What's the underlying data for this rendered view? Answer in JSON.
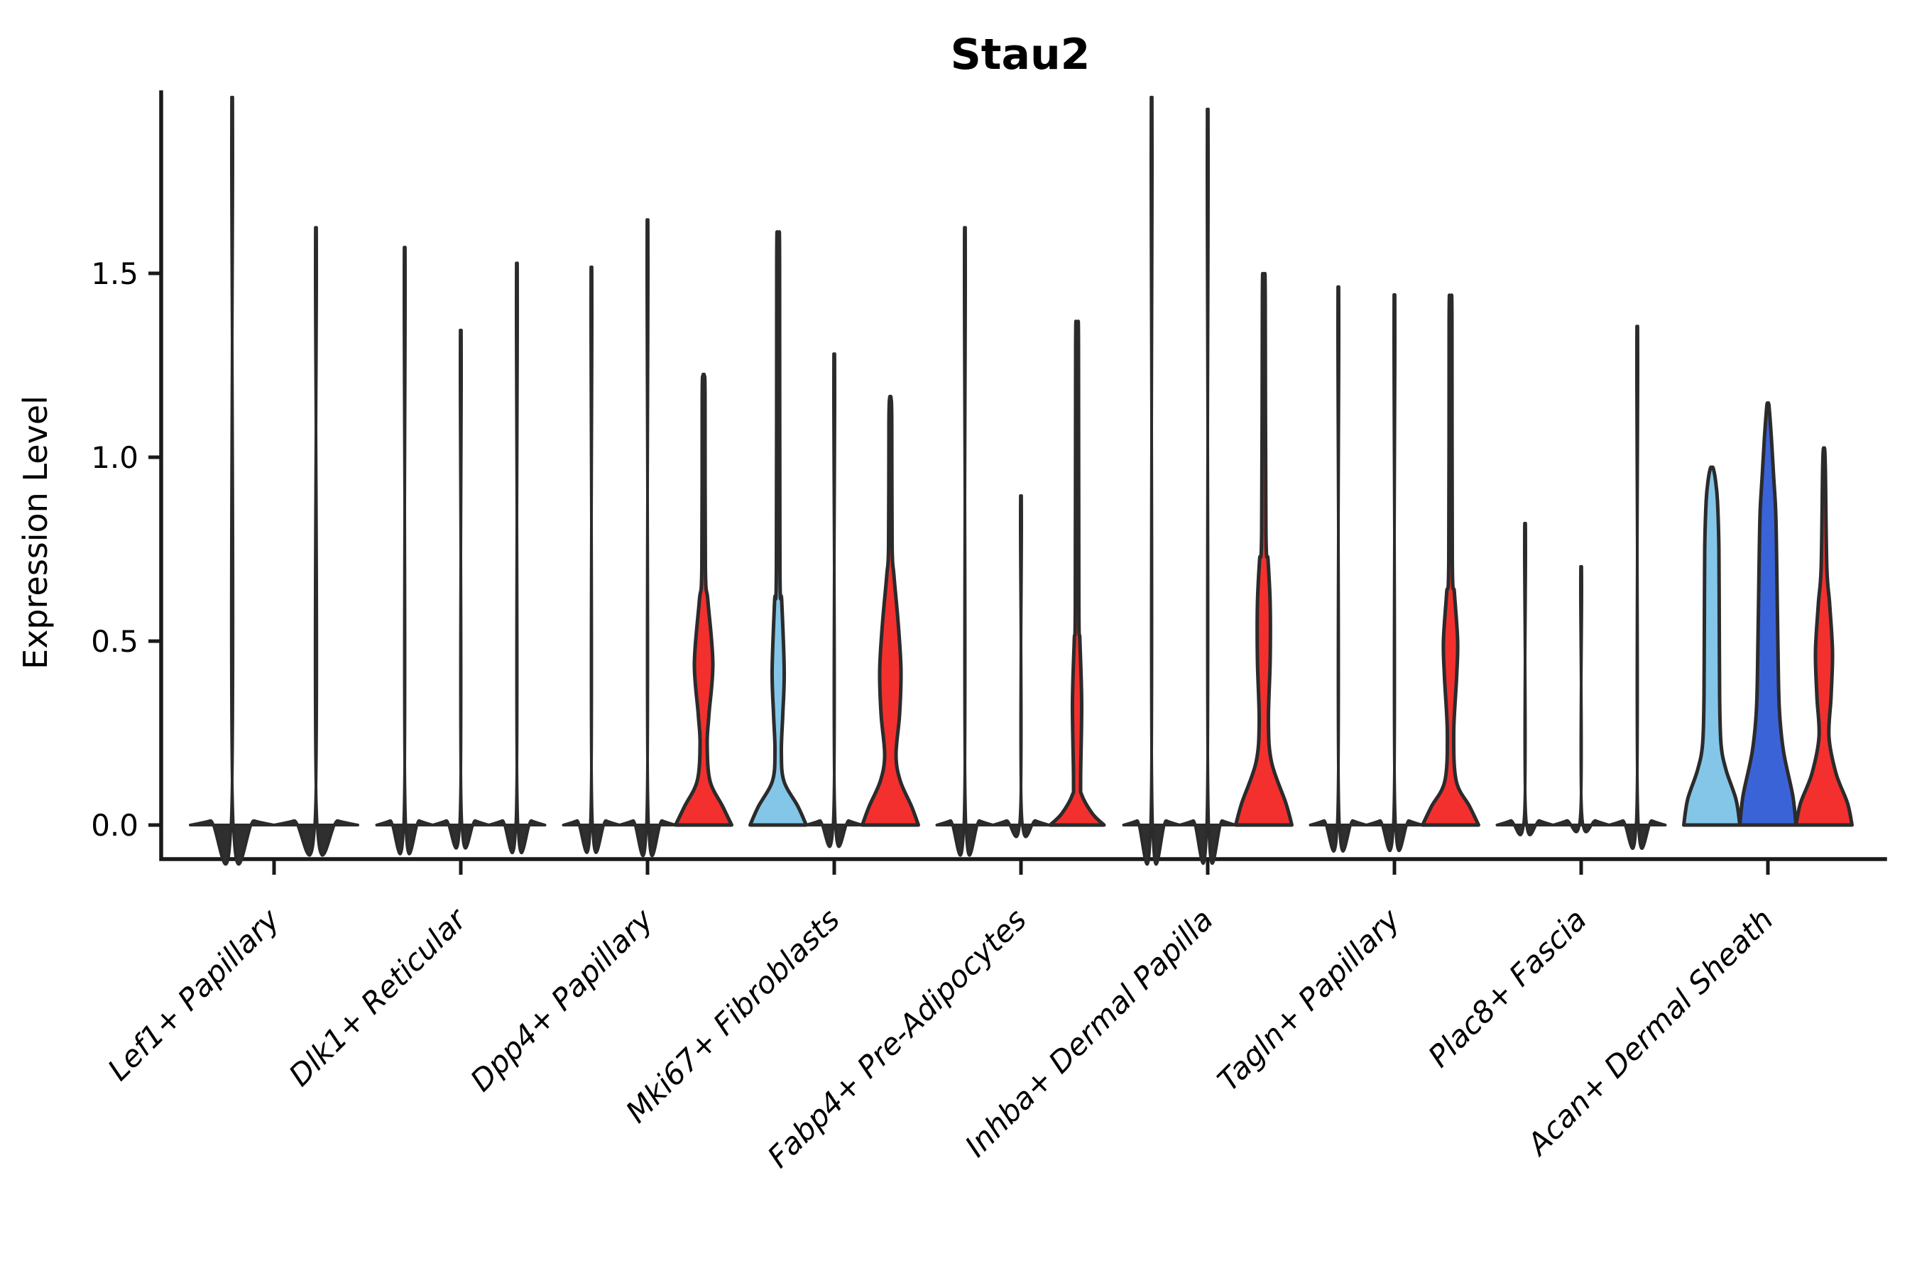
{
  "header": {
    "title": "Stau2"
  },
  "chart_data": {
    "type": "violin",
    "title": "Stau2",
    "ylabel": "Expression Level",
    "xlabel": "",
    "grid": false,
    "legend_position": "none",
    "ylim": [
      -0.09,
      1.99
    ],
    "yticks": [
      "0.0",
      "0.5",
      "1.0",
      "1.5"
    ],
    "ytick_values": [
      0.0,
      0.5,
      1.0,
      1.5
    ],
    "colors": {
      "skyblue": "#84C6E8",
      "royalblue": "#3B63D8",
      "red": "#F3302E",
      "dark": "#2F2F2F",
      "outline": "#2B2B2B",
      "axis": "#1A1A1A"
    },
    "categories": [
      "Lef1+ Papillary",
      "Dlk1+ Reticular",
      "Dpp4+ Papillary",
      "Mki67+ Fibroblasts",
      "Fabp4+ Pre-Adipocytes",
      "Inhba+ Dermal Papilla",
      "Tagln+ Papillary",
      "Plac8+ Fascia",
      "Acan+ Dermal Sheath"
    ],
    "groups": [
      {
        "category": "Lef1+ Papillary",
        "violins": [
          {
            "dx": -59,
            "color": "dark",
            "max": 1.88,
            "base_hw": 59
          },
          {
            "dx": 59,
            "color": "dark",
            "max": 1.55,
            "base_hw": 59
          }
        ]
      },
      {
        "category": "Dlk1+ Reticular",
        "violins": [
          {
            "dx": -79,
            "color": "dark",
            "max": 1.5
          },
          {
            "dx": 0,
            "color": "dark",
            "max": 1.29
          },
          {
            "dx": 79,
            "color": "dark",
            "max": 1.46
          }
        ]
      },
      {
        "category": "Dpp4+ Papillary",
        "violins": [
          {
            "dx": -79,
            "color": "dark",
            "max": 1.45
          },
          {
            "dx": 0,
            "color": "dark",
            "max": 1.57
          },
          {
            "dx": 79,
            "color": "red",
            "max": 1.22,
            "profile": [
              [
                0,
                39.5
              ],
              [
                0.05,
                27
              ],
              [
                0.12,
                9
              ],
              [
                0.22,
                5
              ],
              [
                0.3,
                7.5
              ],
              [
                0.44,
                13
              ],
              [
                0.61,
                6
              ],
              [
                0.7,
                2.5
              ],
              [
                1.16,
                2
              ],
              [
                1.22,
                1
              ]
            ]
          }
        ]
      },
      {
        "category": "Mki67+ Fibroblasts",
        "violins": [
          {
            "dx": -79,
            "color": "skyblue",
            "max": 1.59,
            "profile": [
              [
                0,
                39.5
              ],
              [
                0.05,
                28
              ],
              [
                0.12,
                8
              ],
              [
                0.2,
                4.5
              ],
              [
                0.3,
                6.5
              ],
              [
                0.42,
                8.5
              ],
              [
                0.61,
                5
              ],
              [
                0.7,
                2.5
              ],
              [
                1.53,
                2
              ],
              [
                1.59,
                1
              ]
            ]
          },
          {
            "dx": 0,
            "color": "dark",
            "max": 1.23
          },
          {
            "dx": 79,
            "color": "red",
            "max": 1.16,
            "profile": [
              [
                0,
                39.5
              ],
              [
                0.05,
                30
              ],
              [
                0.12,
                14
              ],
              [
                0.19,
                8
              ],
              [
                0.3,
                13
              ],
              [
                0.42,
                15
              ],
              [
                0.55,
                11
              ],
              [
                0.68,
                5
              ],
              [
                0.76,
                2.5
              ],
              [
                1.1,
                2
              ],
              [
                1.16,
                1
              ]
            ]
          }
        ]
      },
      {
        "category": "Fabp4+ Pre-Adipocytes",
        "violins": [
          {
            "dx": -79,
            "color": "dark",
            "max": 1.55
          },
          {
            "dx": 0,
            "color": "dark",
            "max": 0.87
          },
          {
            "dx": 79,
            "color": "red",
            "max": 1.35,
            "profile": [
              [
                0,
                38
              ],
              [
                0.03,
                22
              ],
              [
                0.08,
                7
              ],
              [
                0.12,
                5
              ],
              [
                0.33,
                6.5
              ],
              [
                0.5,
                4
              ],
              [
                0.6,
                2.5
              ],
              [
                1.3,
                2
              ],
              [
                1.35,
                1
              ]
            ]
          }
        ]
      },
      {
        "category": "Inhba+ Dermal Papilla",
        "violins": [
          {
            "dx": -79,
            "color": "dark",
            "max": 1.88
          },
          {
            "dx": 0,
            "color": "dark",
            "max": 1.85
          },
          {
            "dx": 79,
            "color": "red",
            "max": 1.49,
            "profile": [
              [
                0,
                39.5
              ],
              [
                0.06,
                31
              ],
              [
                0.17,
                11
              ],
              [
                0.28,
                6.5
              ],
              [
                0.45,
                9
              ],
              [
                0.6,
                9
              ],
              [
                0.72,
                6
              ],
              [
                0.8,
                3
              ],
              [
                1.43,
                2
              ],
              [
                1.49,
                1
              ]
            ]
          }
        ]
      },
      {
        "category": "Tagln+ Papillary",
        "violins": [
          {
            "dx": -79,
            "color": "dark",
            "max": 1.4
          },
          {
            "dx": 0,
            "color": "dark",
            "max": 1.38
          },
          {
            "dx": 79,
            "color": "red",
            "max": 1.43,
            "profile": [
              [
                0,
                39.5
              ],
              [
                0.05,
                27
              ],
              [
                0.12,
                8
              ],
              [
                0.25,
                4.5
              ],
              [
                0.4,
                8.5
              ],
              [
                0.5,
                10
              ],
              [
                0.63,
                5.5
              ],
              [
                0.72,
                2.5
              ],
              [
                1.37,
                2
              ],
              [
                1.43,
                1
              ]
            ]
          }
        ]
      },
      {
        "category": "Plac8+ Fascia",
        "violins": [
          {
            "dx": -79,
            "color": "dark",
            "max": 0.8
          },
          {
            "dx": 0,
            "color": "dark",
            "max": 0.69
          },
          {
            "dx": 79,
            "color": "dark",
            "max": 1.3
          }
        ]
      },
      {
        "category": "Acan+ Dermal Sheath",
        "violins": [
          {
            "dx": -79,
            "color": "skyblue",
            "max": 0.97,
            "profile": [
              [
                0,
                39.5
              ],
              [
                0.07,
                34
              ],
              [
                0.15,
                20
              ],
              [
                0.22,
                13
              ],
              [
                0.35,
                11
              ],
              [
                0.55,
                10.5
              ],
              [
                0.75,
                10
              ],
              [
                0.88,
                8
              ],
              [
                0.94,
                5
              ],
              [
                0.97,
                2
              ]
            ]
          },
          {
            "dx": 0,
            "color": "royalblue",
            "max": 1.14,
            "profile": [
              [
                0,
                39.5
              ],
              [
                0.08,
                35
              ],
              [
                0.2,
                22
              ],
              [
                0.32,
                16
              ],
              [
                0.5,
                14
              ],
              [
                0.7,
                12.5
              ],
              [
                0.85,
                11
              ],
              [
                0.95,
                8
              ],
              [
                1.05,
                5
              ],
              [
                1.14,
                1.5
              ]
            ]
          },
          {
            "dx": 79,
            "color": "red",
            "max": 1.02,
            "profile": [
              [
                0,
                39.5
              ],
              [
                0.06,
                33
              ],
              [
                0.14,
                17
              ],
              [
                0.24,
                7
              ],
              [
                0.35,
                10
              ],
              [
                0.47,
                12
              ],
              [
                0.6,
                8
              ],
              [
                0.7,
                4
              ],
              [
                0.96,
                2
              ],
              [
                1.02,
                1
              ]
            ]
          }
        ]
      }
    ]
  }
}
